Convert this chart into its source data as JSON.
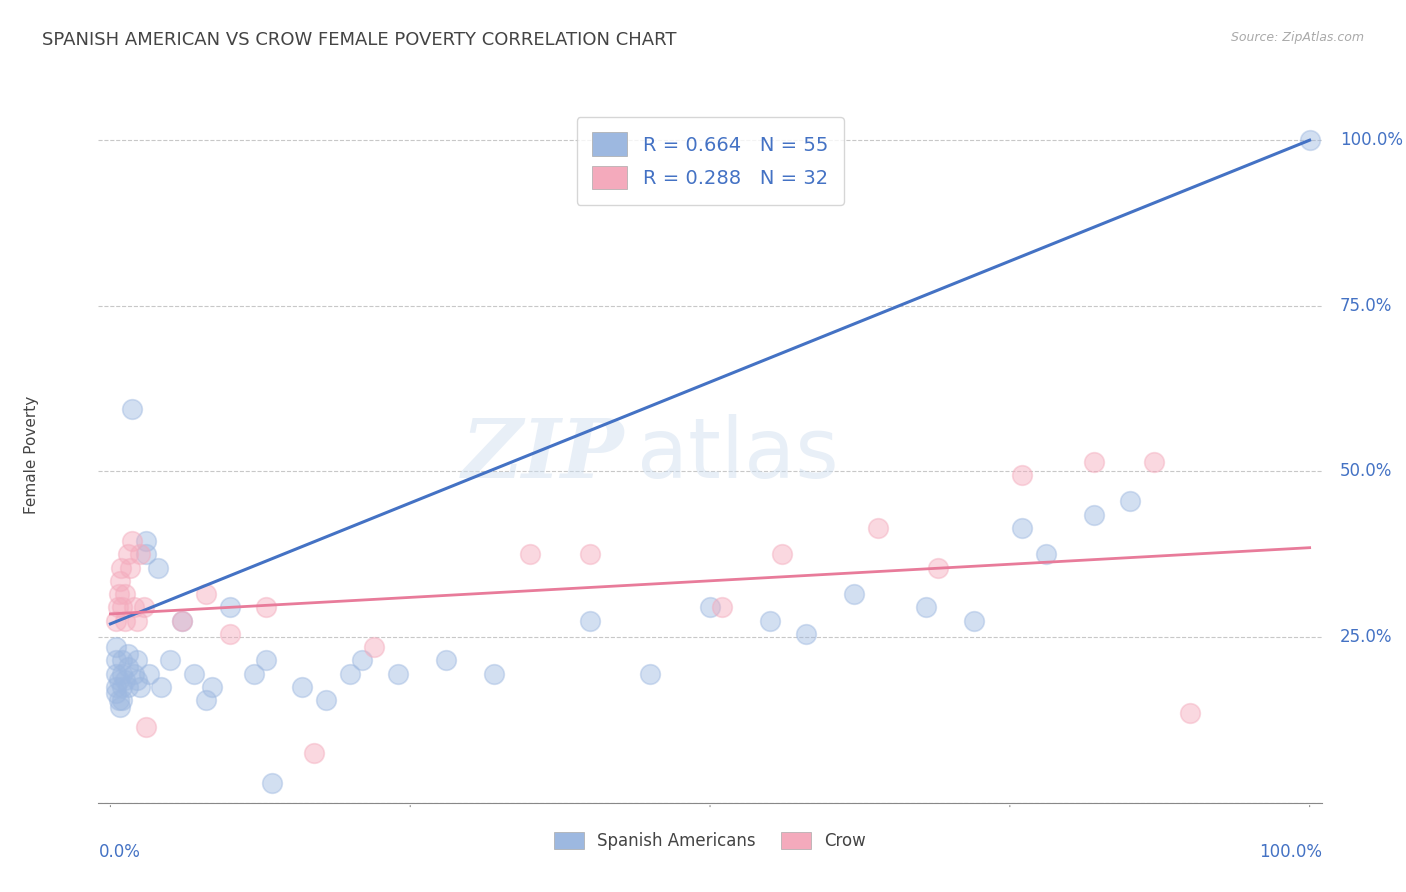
{
  "title": "SPANISH AMERICAN VS CROW FEMALE POVERTY CORRELATION CHART",
  "source": "Source: ZipAtlas.com",
  "ylabel": "Female Poverty",
  "legend_labels": [
    "Spanish Americans",
    "Crow"
  ],
  "r_blue": 0.664,
  "n_blue": 55,
  "r_pink": 0.288,
  "n_pink": 32,
  "blue_color": "#9DB8E0",
  "pink_color": "#F4AABC",
  "blue_line_color": "#4472C4",
  "pink_line_color": "#E87B9A",
  "blue_scatter": [
    [
      0.005,
      0.195
    ],
    [
      0.005,
      0.175
    ],
    [
      0.005,
      0.165
    ],
    [
      0.005,
      0.215
    ],
    [
      0.005,
      0.235
    ],
    [
      0.007,
      0.185
    ],
    [
      0.007,
      0.155
    ],
    [
      0.008,
      0.145
    ],
    [
      0.01,
      0.175
    ],
    [
      0.01,
      0.195
    ],
    [
      0.01,
      0.215
    ],
    [
      0.01,
      0.155
    ],
    [
      0.012,
      0.185
    ],
    [
      0.015,
      0.205
    ],
    [
      0.015,
      0.175
    ],
    [
      0.015,
      0.225
    ],
    [
      0.018,
      0.595
    ],
    [
      0.02,
      0.195
    ],
    [
      0.022,
      0.215
    ],
    [
      0.022,
      0.185
    ],
    [
      0.025,
      0.175
    ],
    [
      0.03,
      0.395
    ],
    [
      0.03,
      0.375
    ],
    [
      0.032,
      0.195
    ],
    [
      0.04,
      0.355
    ],
    [
      0.042,
      0.175
    ],
    [
      0.05,
      0.215
    ],
    [
      0.06,
      0.275
    ],
    [
      0.07,
      0.195
    ],
    [
      0.08,
      0.155
    ],
    [
      0.085,
      0.175
    ],
    [
      0.1,
      0.295
    ],
    [
      0.12,
      0.195
    ],
    [
      0.13,
      0.215
    ],
    [
      0.135,
      0.03
    ],
    [
      0.16,
      0.175
    ],
    [
      0.18,
      0.155
    ],
    [
      0.2,
      0.195
    ],
    [
      0.21,
      0.215
    ],
    [
      0.24,
      0.195
    ],
    [
      0.28,
      0.215
    ],
    [
      0.32,
      0.195
    ],
    [
      0.4,
      0.275
    ],
    [
      0.45,
      0.195
    ],
    [
      0.5,
      0.295
    ],
    [
      0.55,
      0.275
    ],
    [
      0.58,
      0.255
    ],
    [
      0.62,
      0.315
    ],
    [
      0.68,
      0.295
    ],
    [
      0.72,
      0.275
    ],
    [
      0.76,
      0.415
    ],
    [
      0.78,
      0.375
    ],
    [
      0.82,
      0.435
    ],
    [
      0.85,
      0.455
    ],
    [
      1.0,
      1.0
    ]
  ],
  "pink_scatter": [
    [
      0.005,
      0.275
    ],
    [
      0.006,
      0.295
    ],
    [
      0.007,
      0.315
    ],
    [
      0.008,
      0.335
    ],
    [
      0.009,
      0.355
    ],
    [
      0.01,
      0.295
    ],
    [
      0.012,
      0.315
    ],
    [
      0.012,
      0.275
    ],
    [
      0.015,
      0.375
    ],
    [
      0.016,
      0.355
    ],
    [
      0.018,
      0.395
    ],
    [
      0.02,
      0.295
    ],
    [
      0.022,
      0.275
    ],
    [
      0.025,
      0.375
    ],
    [
      0.028,
      0.295
    ],
    [
      0.03,
      0.115
    ],
    [
      0.06,
      0.275
    ],
    [
      0.08,
      0.315
    ],
    [
      0.1,
      0.255
    ],
    [
      0.13,
      0.295
    ],
    [
      0.17,
      0.075
    ],
    [
      0.22,
      0.235
    ],
    [
      0.35,
      0.375
    ],
    [
      0.4,
      0.375
    ],
    [
      0.51,
      0.295
    ],
    [
      0.56,
      0.375
    ],
    [
      0.64,
      0.415
    ],
    [
      0.69,
      0.355
    ],
    [
      0.76,
      0.495
    ],
    [
      0.82,
      0.515
    ],
    [
      0.87,
      0.515
    ],
    [
      0.9,
      0.135
    ]
  ],
  "blue_line": [
    [
      0.0,
      0.27
    ],
    [
      1.0,
      1.0
    ]
  ],
  "pink_line": [
    [
      0.0,
      0.285
    ],
    [
      1.0,
      0.385
    ]
  ],
  "xlim": [
    -0.01,
    1.01
  ],
  "ylim": [
    0.0,
    1.05
  ],
  "ytick_positions": [
    0.0,
    0.25,
    0.5,
    0.75,
    1.0
  ],
  "ytick_labels": [
    "",
    "25.0%",
    "50.0%",
    "75.0%",
    "100.0%"
  ],
  "watermark_zip": "ZIP",
  "watermark_atlas": "atlas",
  "title_fontsize": 13,
  "axis_label_fontsize": 11,
  "tick_fontsize": 12,
  "scatter_size": 200,
  "scatter_alpha": 0.45,
  "background_color": "#FFFFFF",
  "grid_color": "#C8C8C8",
  "title_color": "#444444",
  "axis_tick_color": "#4472C4",
  "source_color": "#AAAAAA"
}
